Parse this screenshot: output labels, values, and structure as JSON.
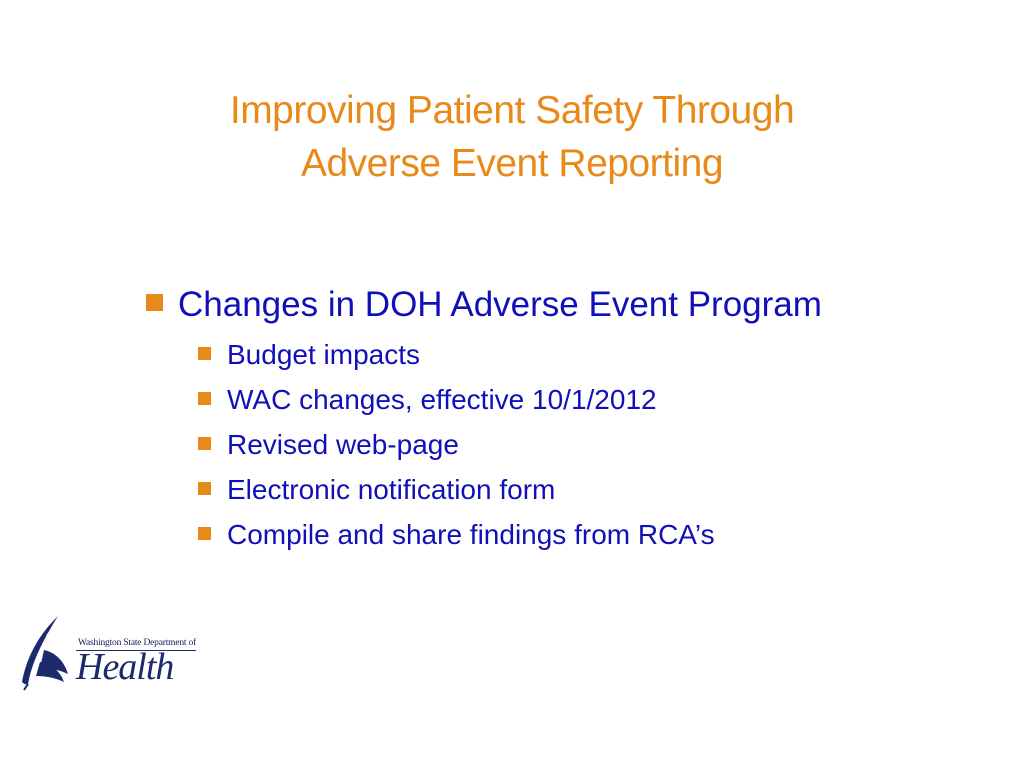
{
  "slide": {
    "title_lines": [
      "Improving Patient Safety Through",
      "Adverse Event Reporting"
    ],
    "bullets": [
      {
        "text": "Changes in DOH Adverse Event Program",
        "subitems": [
          "Budget impacts",
          "WAC changes, effective 10/1/2012",
          "Revised web-page",
          "Electronic notification form",
          "Compile and share findings from RCA’s"
        ]
      }
    ]
  },
  "logo": {
    "small_text": "Washington State Department of",
    "big_text": "Health",
    "icon": "feather-quill-icon"
  },
  "colors": {
    "title": "#E88A1A",
    "bullet_text": "#1010B8",
    "bullet_marker": "#E88A1A",
    "logo": "#1c2b6b"
  }
}
